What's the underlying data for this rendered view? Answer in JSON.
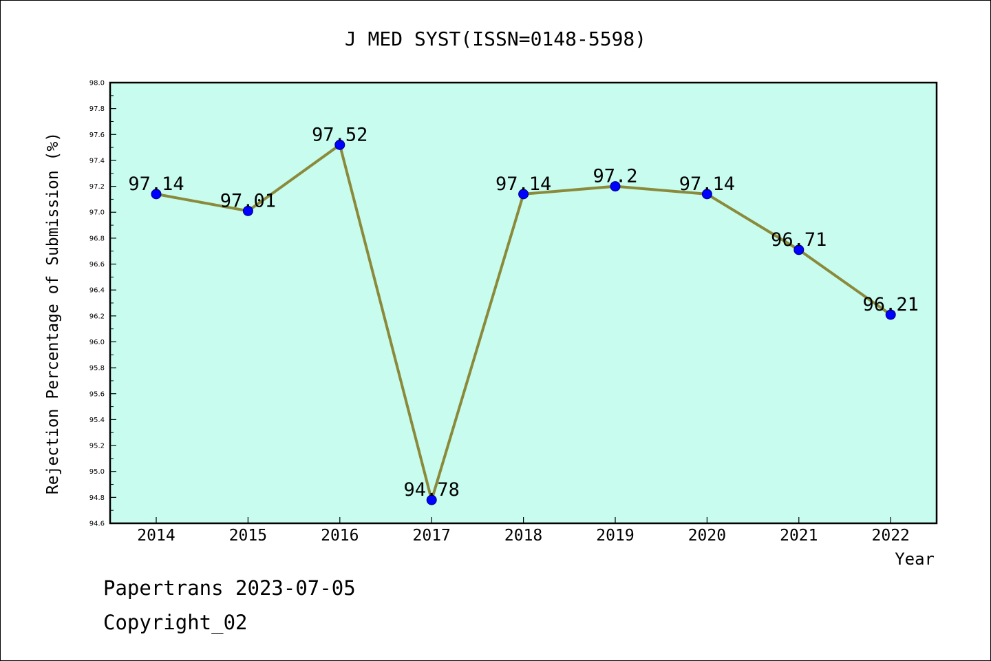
{
  "page": {
    "footer_line1": "Papertrans 2023-07-05",
    "footer_line2": "Copyright_02"
  },
  "colors": {
    "plot_background": "#c8fcef",
    "line": "#8a8a3a",
    "marker": "#0000ff",
    "axis": "#000000"
  },
  "chart_data": {
    "type": "line",
    "title": "J MED SYST(ISSN=0148-5598)",
    "xlabel": "Year",
    "ylabel": "Rejection Percentage of Submission (%)",
    "categories": [
      "2014",
      "2015",
      "2016",
      "2017",
      "2018",
      "2019",
      "2020",
      "2021",
      "2022"
    ],
    "values": [
      97.14,
      97.01,
      97.52,
      94.78,
      97.14,
      97.2,
      97.14,
      96.71,
      96.21
    ],
    "data_labels": [
      "97.14",
      "97.01",
      "97.52",
      "94.78",
      "97.14",
      "97.2",
      "97.14",
      "96.71",
      "96.21"
    ],
    "ylim": [
      94.6,
      98.0
    ],
    "yticks": [
      "94.6",
      "94.8",
      "95.0",
      "95.2",
      "95.4",
      "95.6",
      "95.8",
      "96.0",
      "96.2",
      "96.4",
      "96.6",
      "96.8",
      "97.0",
      "97.2",
      "97.4",
      "97.6",
      "97.8",
      "98.0"
    ],
    "grid": false,
    "legend": "none"
  }
}
